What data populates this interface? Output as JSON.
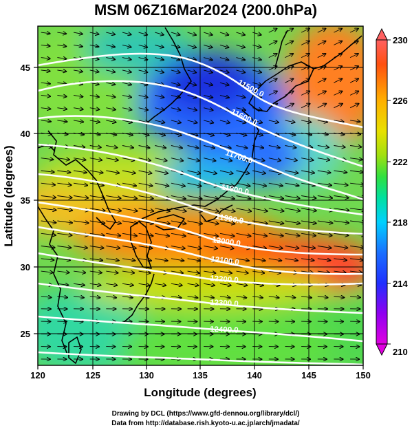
{
  "title": "MSM 06Z16Mar2024 (200.0hPa)",
  "xlabel": "Longitude (degrees)",
  "ylabel": "Latitude  (degrees)",
  "x_ticks": [
    "120",
    "125",
    "130",
    "135",
    "140",
    "145",
    "150"
  ],
  "y_ticks": [
    "25",
    "30",
    "35",
    "40",
    "45"
  ],
  "colorbar": {
    "min": 210,
    "max": 230,
    "labels": [
      "230",
      "226",
      "222",
      "218",
      "214",
      "210"
    ]
  },
  "contours": [
    {
      "label": "11500.0"
    },
    {
      "label": "11600.0"
    },
    {
      "label": "11700.0"
    },
    {
      "label": "11800.0"
    },
    {
      "label": "11900.0"
    },
    {
      "label": "12000.0"
    },
    {
      "label": "12100.0"
    },
    {
      "label": "12200.0"
    },
    {
      "label": "12300.0"
    },
    {
      "label": "12400.0"
    }
  ],
  "credits": {
    "line1": "Drawing by DCL (https://www.gfd-dennou.org/library/dcl/)",
    "line2": "Data from http://database.rish.kyoto-u.ac.jp/arch/jmadata/"
  },
  "colors": {
    "temp_scale": [
      "#e000e0",
      "#9000f0",
      "#2030ff",
      "#1a6fff",
      "#00d0ff",
      "#00e0a0",
      "#30e040",
      "#a0e010",
      "#e8e000",
      "#ffb000",
      "#ff5010",
      "#ff6060"
    ],
    "contour": "#ffffff",
    "coast": "#000000"
  }
}
